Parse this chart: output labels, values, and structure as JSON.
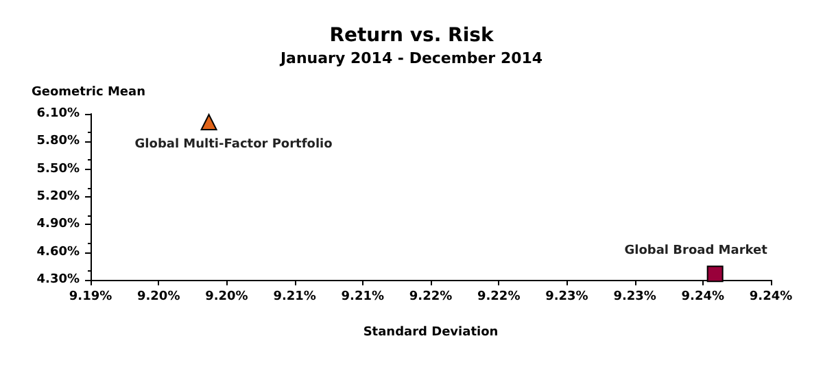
{
  "chart_data": {
    "type": "scatter",
    "title": "Return vs. Risk",
    "subtitle": "January 2014 - December 2014",
    "xlabel": "Standard Deviation",
    "ylabel": "Geometric Mean",
    "series": [
      {
        "name": "Global Multi-Factor Portfolio",
        "color": "#e0641a",
        "marker": "triangle",
        "x": [
          9.1987
        ],
        "values": [
          6.01
        ]
      },
      {
        "name": "Global Broad Market",
        "color": "#99003a",
        "marker": "square",
        "x": [
          9.2359
        ],
        "values": [
          4.366
        ]
      }
    ],
    "xlim": [
      9.19,
      9.24
    ],
    "xticks": [
      {
        "value": 9.19,
        "label": "9.19%"
      },
      {
        "value": 9.195,
        "label": "9.20%"
      },
      {
        "value": 9.2,
        "label": "9.20%"
      },
      {
        "value": 9.205,
        "label": "9.21%"
      },
      {
        "value": 9.21,
        "label": "9.21%"
      },
      {
        "value": 9.215,
        "label": "9.22%"
      },
      {
        "value": 9.22,
        "label": "9.22%"
      },
      {
        "value": 9.225,
        "label": "9.23%"
      },
      {
        "value": 9.23,
        "label": "9.23%"
      },
      {
        "value": 9.235,
        "label": "9.24%"
      },
      {
        "value": 9.24,
        "label": "9.24%"
      }
    ],
    "ylim": [
      4.3,
      6.1
    ],
    "yticks": [
      {
        "value": 4.3,
        "label": "4.30%"
      },
      {
        "value": 4.6,
        "label": "4.60%"
      },
      {
        "value": 4.9,
        "label": "4.90%"
      },
      {
        "value": 5.2,
        "label": "5.20%"
      },
      {
        "value": 5.5,
        "label": "5.50%"
      },
      {
        "value": 5.8,
        "label": "5.80%"
      },
      {
        "value": 6.1,
        "label": "6.10%"
      }
    ],
    "grid": false,
    "legend": false
  }
}
